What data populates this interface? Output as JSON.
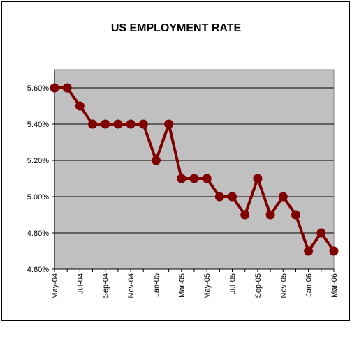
{
  "chart_data": {
    "type": "line",
    "title": "US EMPLOYMENT RATE",
    "xlabel": "",
    "ylabel": "",
    "ylim": [
      0.046,
      0.057
    ],
    "yticks": [
      {
        "value": 0.046,
        "label": "4.60%"
      },
      {
        "value": 0.048,
        "label": "4.80%"
      },
      {
        "value": 0.05,
        "label": "5.00%"
      },
      {
        "value": 0.052,
        "label": "5.20%"
      },
      {
        "value": 0.054,
        "label": "5.40%"
      },
      {
        "value": 0.056,
        "label": "5.60%"
      }
    ],
    "grid": "horizontal",
    "legend": "none",
    "categories": [
      "May-04",
      "Jun-04",
      "Jul-04",
      "Aug-04",
      "Sep-04",
      "Oct-04",
      "Nov-04",
      "Dec-04",
      "Jan-05",
      "Feb-05",
      "Mar-05",
      "Apr-05",
      "May-05",
      "Jun-05",
      "Jul-05",
      "Aug-05",
      "Sep-05",
      "Oct-05",
      "Nov-05",
      "Dec-05",
      "Jan-06",
      "Feb-06",
      "Mar-06"
    ],
    "xtick_labels": [
      "May-04",
      "",
      "Jul-04",
      "",
      "Sep-04",
      "",
      "Nov-04",
      "",
      "Jan-05",
      "",
      "Mar-05",
      "",
      "May-05",
      "",
      "Jul-05",
      "",
      "Sep-05",
      "",
      "Nov-05",
      "",
      "Jan-06",
      "",
      "Mar-06"
    ],
    "series": [
      {
        "values": [
          0.056,
          0.056,
          0.055,
          0.054,
          0.054,
          0.054,
          0.054,
          0.054,
          0.052,
          0.054,
          0.051,
          0.051,
          0.051,
          0.05,
          0.05,
          0.049,
          0.051,
          0.049,
          0.05,
          0.049,
          0.047,
          0.048,
          0.047
        ],
        "color": "#800000"
      }
    ],
    "plot_background": "#c0c0c0"
  }
}
